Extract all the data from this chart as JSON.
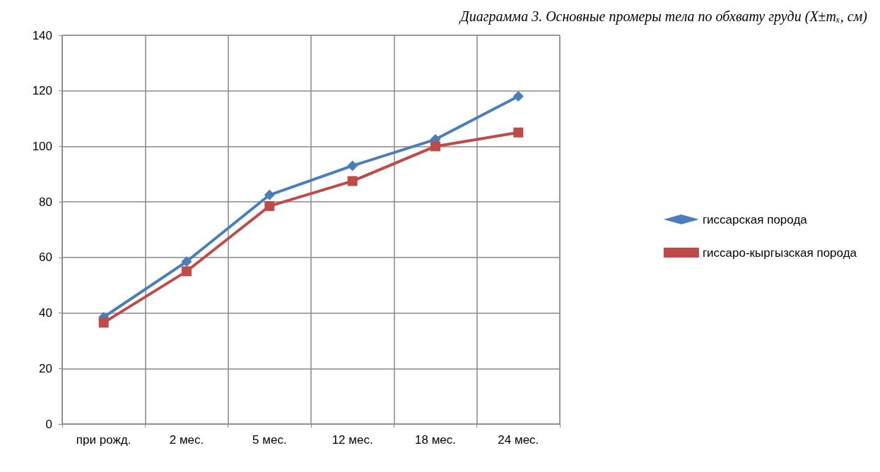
{
  "chart_data": {
    "type": "line",
    "title": "Диаграмма 3. Основные промеры тела по обхвату груди (X±mₓ, см)",
    "categories": [
      "при рожд.",
      "2 мес.",
      "5 мес.",
      "12 мес.",
      "18 мес.",
      "24 мес."
    ],
    "series": [
      {
        "name": "гиссарская порода",
        "color": "#4a7ebb",
        "marker": "diamond",
        "values": [
          38.5,
          58.5,
          82.5,
          93,
          102.5,
          118
        ]
      },
      {
        "name": "гиссаро-кыргызская порода",
        "color": "#be4b48",
        "marker": "square",
        "values": [
          36.5,
          55,
          78.5,
          87.5,
          100,
          105
        ]
      }
    ],
    "ylim": [
      0,
      140
    ],
    "yticks": [
      0,
      20,
      40,
      60,
      80,
      100,
      120,
      140
    ],
    "grid": true,
    "legend": "right",
    "line_style": "solid"
  }
}
